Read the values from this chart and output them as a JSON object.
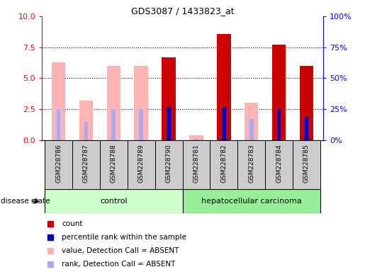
{
  "title": "GDS3087 / 1433823_at",
  "samples": [
    "GSM228786",
    "GSM228787",
    "GSM228788",
    "GSM228789",
    "GSM228790",
    "GSM228781",
    "GSM228782",
    "GSM228783",
    "GSM228784",
    "GSM228785"
  ],
  "n_control": 5,
  "n_cancer": 5,
  "value_absent": [
    6.3,
    3.2,
    6.0,
    6.0,
    null,
    0.4,
    null,
    3.0,
    null,
    null
  ],
  "rank_absent": [
    2.5,
    1.5,
    2.5,
    2.5,
    null,
    0.1,
    null,
    1.7,
    null,
    null
  ],
  "value_present": [
    null,
    null,
    null,
    null,
    6.7,
    null,
    8.6,
    null,
    7.7,
    6.0
  ],
  "rank_present": [
    null,
    null,
    null,
    null,
    2.7,
    null,
    2.7,
    null,
    2.5,
    1.9
  ],
  "ylim_left": [
    0,
    10
  ],
  "ylim_right": [
    0,
    100
  ],
  "yticks_left": [
    0,
    2.5,
    5.0,
    7.5,
    10
  ],
  "yticks_right_vals": [
    0,
    25,
    50,
    75,
    100
  ],
  "yticks_right_labels": [
    "0%",
    "25%",
    "50%",
    "75%",
    "100%"
  ],
  "color_darkred": "#cc0000",
  "color_pink": "#ffb3b3",
  "color_blue": "#0000cc",
  "color_lightblue": "#aaaaee",
  "color_control_bg": "#ccffcc",
  "color_cancer_bg": "#99ee99",
  "color_sample_bg": "#cccccc",
  "control_label": "control",
  "cancer_label": "hepatocellular carcinoma",
  "disease_state_label": "disease state",
  "legend_items": [
    "count",
    "percentile rank within the sample",
    "value, Detection Call = ABSENT",
    "rank, Detection Call = ABSENT"
  ],
  "legend_colors": [
    "#cc0000",
    "#0000cc",
    "#ffb3b3",
    "#aaaaee"
  ],
  "bar_width": 0.5,
  "rank_bar_width": 0.15
}
